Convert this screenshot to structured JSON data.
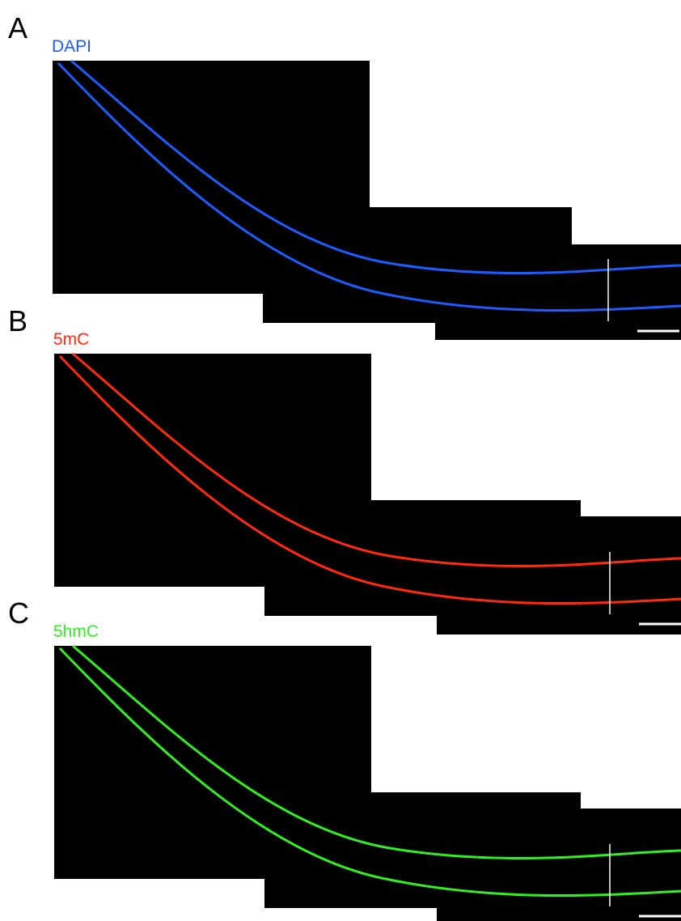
{
  "panels": [
    {
      "letter": "A",
      "label": "DAPI",
      "color": "#1f5cff"
    },
    {
      "letter": "B",
      "label": "5mC",
      "color": "#ff2a10"
    },
    {
      "letter": "C",
      "label": "5hmC",
      "color": "#33ee22"
    }
  ]
}
